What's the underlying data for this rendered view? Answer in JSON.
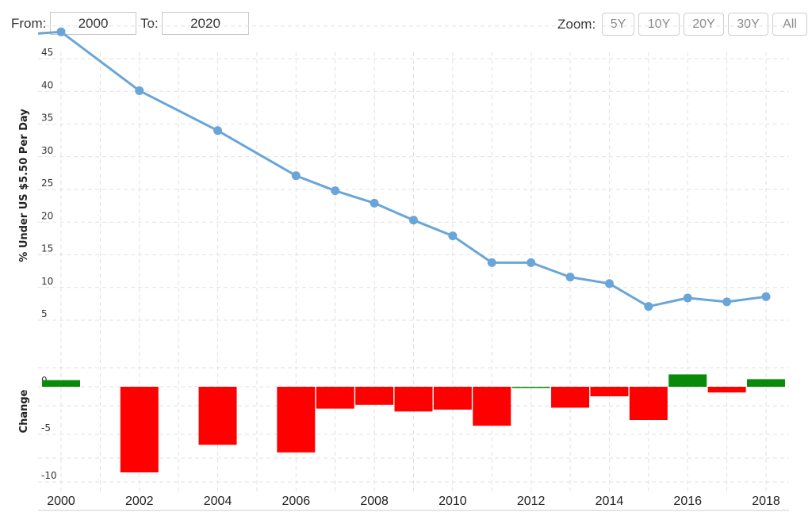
{
  "toolbar": {
    "from_label": "From:",
    "from_value": "2000",
    "to_label": "To:",
    "to_value": "2020",
    "zoom_label": "Zoom:",
    "zoom_buttons": [
      "5Y",
      "10Y",
      "20Y",
      "30Y",
      "All"
    ]
  },
  "colors": {
    "line": "#6aa5d8",
    "positive": "#0a8a0a",
    "negative": "#ff0000",
    "grid": "#e1e1e1"
  },
  "chart_data": [
    {
      "type": "line",
      "ylabel": "% Under US $5.50 Per Day",
      "x": [
        2000,
        2002,
        2004,
        2006,
        2007,
        2008,
        2009,
        2010,
        2011,
        2012,
        2013,
        2014,
        2015,
        2016,
        2017,
        2018
      ],
      "values": [
        49.1,
        40.1,
        34.0,
        27.1,
        24.8,
        22.9,
        20.3,
        17.9,
        13.8,
        13.8,
        11.6,
        10.6,
        7.1,
        8.4,
        7.8,
        8.6
      ],
      "y_ticks": [
        5,
        10,
        15,
        20,
        25,
        30,
        35,
        40,
        45
      ],
      "ylim": [
        0,
        50
      ],
      "grid": true
    },
    {
      "type": "bar",
      "ylabel": "Change",
      "x": [
        2000,
        2002,
        2004,
        2006,
        2007,
        2008,
        2009,
        2010,
        2011,
        2012,
        2013,
        2014,
        2015,
        2016,
        2017,
        2018
      ],
      "values": [
        0.7,
        -9.0,
        -6.1,
        -6.9,
        -2.3,
        -1.9,
        -2.6,
        -2.4,
        -4.1,
        0.0,
        -2.2,
        -1.0,
        -3.5,
        1.3,
        -0.6,
        0.8
      ],
      "y_ticks": [
        0,
        -5,
        -10
      ],
      "ylim": [
        -10,
        2
      ],
      "grid": true
    }
  ],
  "x_ticks": [
    2000,
    2002,
    2004,
    2006,
    2008,
    2010,
    2012,
    2014,
    2016,
    2018
  ]
}
